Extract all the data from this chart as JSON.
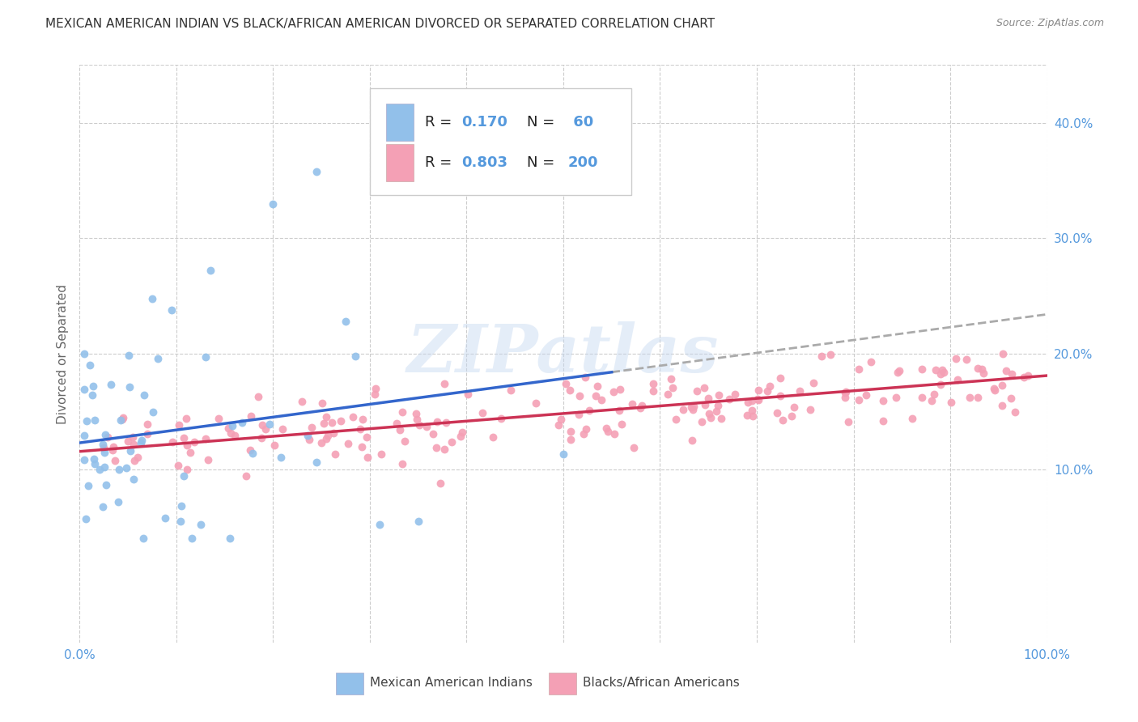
{
  "title": "MEXICAN AMERICAN INDIAN VS BLACK/AFRICAN AMERICAN DIVORCED OR SEPARATED CORRELATION CHART",
  "source": "Source: ZipAtlas.com",
  "ylabel": "Divorced or Separated",
  "watermark": "ZIPatlas",
  "xlim": [
    0.0,
    1.0
  ],
  "ylim": [
    -0.05,
    0.45
  ],
  "y_ticks": [
    0.1,
    0.2,
    0.3,
    0.4
  ],
  "blue_R": 0.17,
  "blue_N": 60,
  "pink_R": 0.803,
  "pink_N": 200,
  "blue_color": "#92c0ea",
  "pink_color": "#f4a0b5",
  "blue_line_color": "#3366cc",
  "pink_line_color": "#cc3355",
  "dashed_line_color": "#aaaaaa",
  "grid_color": "#cccccc",
  "title_color": "#333333",
  "tick_color": "#5599dd",
  "source_color": "#888888"
}
